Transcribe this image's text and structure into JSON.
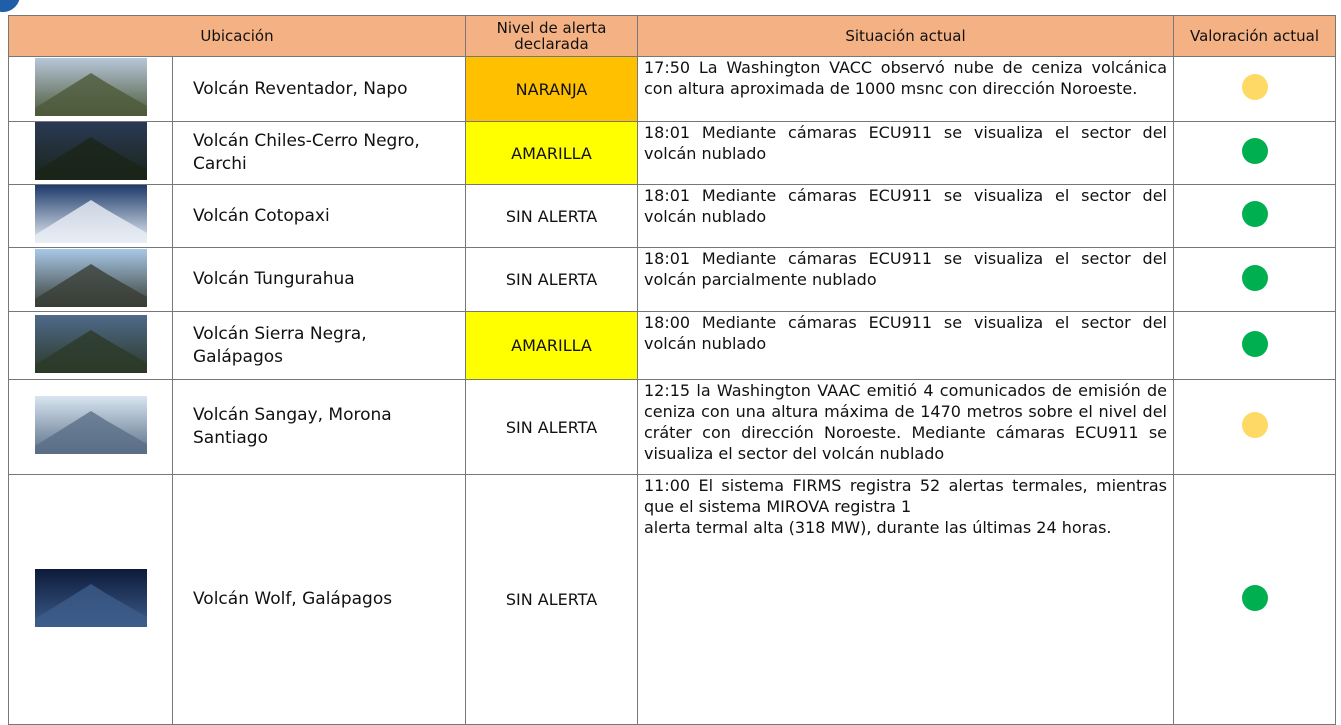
{
  "table": {
    "header": [
      "Ubicación",
      "Nivel de alerta declarada",
      "Situación actual",
      "Valoración actual"
    ],
    "rows": [
      {
        "ubicacion": "Volcán Reventador, Napo",
        "nivel": "NARANJA",
        "situacion": "17:50 La Washington VACC observó nube de ceniza volcánica con altura aproximada de 1000 msnc con dirección Noroeste.",
        "valoracion": "#ffd966"
      },
      {
        "ubicacion": "Volcán Chiles-Cerro Negro, Carchi",
        "nivel": "AMARILLA",
        "situacion": "18:01 Mediante cámaras ECU911 se visualiza el sector del volcán nublado",
        "valoracion": "#00b050"
      },
      {
        "ubicacion": "Volcán Cotopaxi",
        "nivel": "SIN ALERTA",
        "situacion": "18:01 Mediante cámaras ECU911 se visualiza el sector del volcán nublado",
        "valoracion": "#00b050"
      },
      {
        "ubicacion": "Volcán Tungurahua",
        "nivel": "SIN ALERTA",
        "situacion": "18:01 Mediante cámaras ECU911 se visualiza el sector del volcán parcialmente nublado",
        "valoracion": "#00b050"
      },
      {
        "ubicacion": "Volcán Sierra Negra, Galápagos",
        "nivel": "AMARILLA",
        "situacion": "18:00 Mediante cámaras ECU911 se visualiza el sector del volcán nublado",
        "valoracion": "#00b050"
      },
      {
        "ubicacion": "Volcán Sangay, Morona Santiago",
        "nivel": "SIN ALERTA",
        "situacion": "12:15 la Washington VAAC emitió 4 comunicados de emisión de ceniza con una altura máxima de 1470 metros sobre el nivel del cráter con dirección Noroeste. Mediante cámaras ECU911 se visualiza el sector del volcán nublado",
        "valoracion": "#ffd966"
      },
      {
        "ubicacion": "Volcán Wolf, Galápagos",
        "nivel": "SIN ALERTA",
        "situacion": "11:00 El sistema FIRMS registra 52 alertas termales, mientras que el sistema MIROVA registra 1\nalerta termal alta (318 MW), durante las últimas 24 horas.",
        "valoracion": "#00b050"
      }
    ]
  }
}
